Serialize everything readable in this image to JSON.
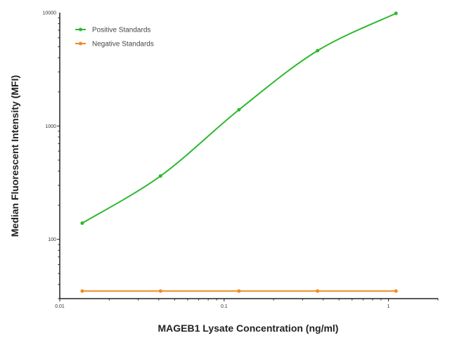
{
  "chart_data": {
    "type": "line",
    "title": "",
    "xlabel": "MAGEB1 Lysate Concentration (ng/ml)",
    "ylabel": "Median  Fluorescent Intensity  (MFI)",
    "xscale": "log",
    "yscale": "log",
    "xlim": [
      0.01,
      2
    ],
    "ylim": [
      30,
      10000
    ],
    "xticks": [
      {
        "v": 0.01,
        "label": "0.01"
      },
      {
        "v": 0.1,
        "label": "0.1"
      },
      {
        "v": 1,
        "label": "1"
      }
    ],
    "yticks": [
      {
        "v": 100,
        "label": "100"
      },
      {
        "v": 1000,
        "label": "1000"
      },
      {
        "v": 10000,
        "label": "10000"
      }
    ],
    "grid": false,
    "legend_position": "top-left",
    "series": [
      {
        "name": "Positive Standards",
        "color": "#2db82d",
        "smooth": true,
        "x": [
          0.0137,
          0.041,
          0.123,
          0.37,
          1.11
        ],
        "y": [
          139,
          362,
          1390,
          4620,
          9860
        ]
      },
      {
        "name": "Negative Standards",
        "color": "#f08a24",
        "smooth": false,
        "x": [
          0.0137,
          0.041,
          0.123,
          0.37,
          1.11
        ],
        "y": [
          35,
          35,
          35,
          35,
          35
        ]
      }
    ]
  }
}
